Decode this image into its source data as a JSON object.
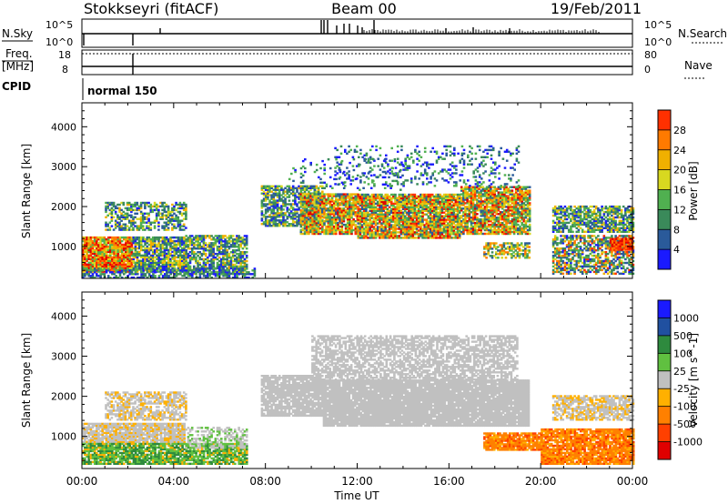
{
  "header": {
    "station": "Stokkseyri (fitACF)",
    "beam": "Beam 00",
    "date": "19/Feb/2011"
  },
  "top_panels": {
    "nsky_label": "N.Sky",
    "nsearch_label": "N.Search",
    "nsky_tick_high": "10^5",
    "nsky_tick_low": "10^0",
    "freq_label": "Freq.",
    "freq_unit": "[MHz]",
    "freq_tick_high": "18",
    "freq_tick_low": "8",
    "nave_label": "Nave",
    "nave_tick_high": "80",
    "nave_tick_low": "0",
    "cpid_label": "CPID",
    "cpid_value": "normal 150"
  },
  "colors": {
    "power": [
      "#1a1aff",
      "#2a5a9a",
      "#3a8a5a",
      "#50b050",
      "#d8d820",
      "#f0b000",
      "#ff7a00",
      "#ff3000",
      "#e00000"
    ],
    "velocity": [
      "#e00000",
      "#ff4000",
      "#ff8000",
      "#ffb000",
      "#c0c0c0",
      "#60c040",
      "#2e8a3e",
      "#2050a0",
      "#1a1aff"
    ],
    "grey_scatter": "#c0c0c0"
  },
  "chart_data": [
    {
      "type": "heatmap",
      "name": "power-panel",
      "xlabel": "",
      "ylabel": "Slant Range [km]",
      "xlim": [
        "00:00",
        "24:00"
      ],
      "ylim": [
        200,
        4600
      ],
      "y_ticks": [
        "1000",
        "2000",
        "3000",
        "4000"
      ],
      "colorbar_label": "Power [dB]",
      "colorbar_ticks": [
        "4",
        "8",
        "12",
        "16",
        "20",
        "24",
        "28"
      ],
      "regions": [
        {
          "t_start": 0.0,
          "t_end": 2.2,
          "range_start": 400,
          "range_end": 1250,
          "level": "high"
        },
        {
          "t_start": 1.0,
          "t_end": 4.5,
          "range_start": 1400,
          "range_end": 2100,
          "level": "medium"
        },
        {
          "t_start": 2.2,
          "t_end": 7.2,
          "range_start": 300,
          "range_end": 1300,
          "level": "medium"
        },
        {
          "t_start": 7.8,
          "t_end": 11.0,
          "range_start": 1500,
          "range_end": 2500,
          "level": "medium"
        },
        {
          "t_start": 9.0,
          "t_end": 19.5,
          "range_start": 1200,
          "range_end": 2400,
          "level": "high"
        },
        {
          "t_start": 11.0,
          "t_end": 19.0,
          "range_start": 2500,
          "range_end": 3500,
          "level": "low"
        },
        {
          "t_start": 17.5,
          "t_end": 19.5,
          "range_start": 700,
          "range_end": 1100,
          "level": "medium"
        },
        {
          "t_start": 20.5,
          "t_end": 24.0,
          "range_start": 1300,
          "range_end": 2000,
          "level": "medium"
        },
        {
          "t_start": 20.5,
          "t_end": 24.0,
          "range_start": 300,
          "range_end": 1300,
          "level": "medium"
        }
      ]
    },
    {
      "type": "heatmap",
      "name": "velocity-panel",
      "xlabel": "Time UT",
      "ylabel": "Slant Range [km]",
      "x_ticks": [
        "00:00",
        "04:00",
        "08:00",
        "12:00",
        "16:00",
        "20:00",
        "00:00"
      ],
      "ylim": [
        200,
        4600
      ],
      "y_ticks": [
        "1000",
        "2000",
        "3000",
        "4000"
      ],
      "colorbar_label": "Velocity [m s^-1]",
      "colorbar_ticks": [
        "-1000",
        "-500",
        "-100",
        "-25",
        "25",
        "100",
        "500",
        "1000"
      ],
      "regions": [
        {
          "t_start": 0.0,
          "t_end": 7.2,
          "range_start": 300,
          "range_end": 800,
          "velocity": "+100 to +500"
        },
        {
          "t_start": 0.0,
          "t_end": 4.5,
          "range_start": 800,
          "range_end": 2100,
          "velocity": "ground scatter"
        },
        {
          "t_start": 7.8,
          "t_end": 19.5,
          "range_start": 1200,
          "range_end": 3500,
          "velocity": "ground scatter"
        },
        {
          "t_start": 17.5,
          "t_end": 20.0,
          "range_start": 600,
          "range_end": 1100,
          "velocity": "-100 to -500"
        },
        {
          "t_start": 20.0,
          "t_end": 24.0,
          "range_start": 300,
          "range_end": 1200,
          "velocity": "-100 to -500"
        },
        {
          "t_start": 20.5,
          "t_end": 24.0,
          "range_start": 1400,
          "range_end": 2000,
          "velocity": "ground scatter"
        }
      ]
    }
  ]
}
